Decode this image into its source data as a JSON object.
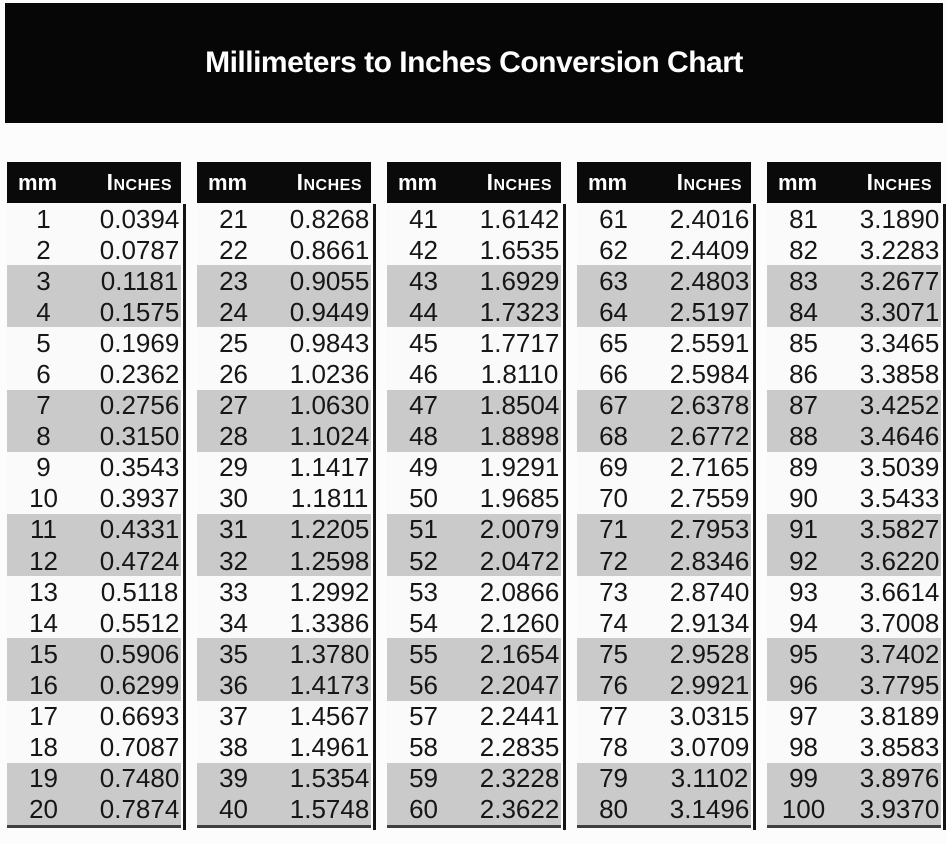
{
  "title": "Millimeters to Inches Conversion Chart",
  "colors": {
    "page_bg": "#fcfcfc",
    "banner_bg": "#060606",
    "title_text": "#ffffff",
    "header_bg": "#0a0a0a",
    "header_text": "#ffffff",
    "row_bg": "#fafafa",
    "row_alt_bg": "#cacaca",
    "separator": "#141414",
    "table_edge": "#3f3f3f",
    "body_text": "#161616"
  },
  "chart_data": {
    "type": "table",
    "title": "Millimeters to Inches Conversion Chart",
    "column_headers": [
      "mm",
      "Inches"
    ],
    "row_striping": "pairs of rows alternate white and gray",
    "tables": [
      {
        "rows": [
          [
            "1",
            "0.0394"
          ],
          [
            "2",
            "0.0787"
          ],
          [
            "3",
            "0.1181"
          ],
          [
            "4",
            "0.1575"
          ],
          [
            "5",
            "0.1969"
          ],
          [
            "6",
            "0.2362"
          ],
          [
            "7",
            "0.2756"
          ],
          [
            "8",
            "0.3150"
          ],
          [
            "9",
            "0.3543"
          ],
          [
            "10",
            "0.3937"
          ],
          [
            "11",
            "0.4331"
          ],
          [
            "12",
            "0.4724"
          ],
          [
            "13",
            "0.5118"
          ],
          [
            "14",
            "0.5512"
          ],
          [
            "15",
            "0.5906"
          ],
          [
            "16",
            "0.6299"
          ],
          [
            "17",
            "0.6693"
          ],
          [
            "18",
            "0.7087"
          ],
          [
            "19",
            "0.7480"
          ],
          [
            "20",
            "0.7874"
          ]
        ]
      },
      {
        "rows": [
          [
            "21",
            "0.8268"
          ],
          [
            "22",
            "0.8661"
          ],
          [
            "23",
            "0.9055"
          ],
          [
            "24",
            "0.9449"
          ],
          [
            "25",
            "0.9843"
          ],
          [
            "26",
            "1.0236"
          ],
          [
            "27",
            "1.0630"
          ],
          [
            "28",
            "1.1024"
          ],
          [
            "29",
            "1.1417"
          ],
          [
            "30",
            "1.1811"
          ],
          [
            "31",
            "1.2205"
          ],
          [
            "32",
            "1.2598"
          ],
          [
            "33",
            "1.2992"
          ],
          [
            "34",
            "1.3386"
          ],
          [
            "35",
            "1.3780"
          ],
          [
            "36",
            "1.4173"
          ],
          [
            "37",
            "1.4567"
          ],
          [
            "38",
            "1.4961"
          ],
          [
            "39",
            "1.5354"
          ],
          [
            "40",
            "1.5748"
          ]
        ]
      },
      {
        "rows": [
          [
            "41",
            "1.6142"
          ],
          [
            "42",
            "1.6535"
          ],
          [
            "43",
            "1.6929"
          ],
          [
            "44",
            "1.7323"
          ],
          [
            "45",
            "1.7717"
          ],
          [
            "46",
            "1.8110"
          ],
          [
            "47",
            "1.8504"
          ],
          [
            "48",
            "1.8898"
          ],
          [
            "49",
            "1.9291"
          ],
          [
            "50",
            "1.9685"
          ],
          [
            "51",
            "2.0079"
          ],
          [
            "52",
            "2.0472"
          ],
          [
            "53",
            "2.0866"
          ],
          [
            "54",
            "2.1260"
          ],
          [
            "55",
            "2.1654"
          ],
          [
            "56",
            "2.2047"
          ],
          [
            "57",
            "2.2441"
          ],
          [
            "58",
            "2.2835"
          ],
          [
            "59",
            "2.3228"
          ],
          [
            "60",
            "2.3622"
          ]
        ]
      },
      {
        "rows": [
          [
            "61",
            "2.4016"
          ],
          [
            "62",
            "2.4409"
          ],
          [
            "63",
            "2.4803"
          ],
          [
            "64",
            "2.5197"
          ],
          [
            "65",
            "2.5591"
          ],
          [
            "66",
            "2.5984"
          ],
          [
            "67",
            "2.6378"
          ],
          [
            "68",
            "2.6772"
          ],
          [
            "69",
            "2.7165"
          ],
          [
            "70",
            "2.7559"
          ],
          [
            "71",
            "2.7953"
          ],
          [
            "72",
            "2.8346"
          ],
          [
            "73",
            "2.8740"
          ],
          [
            "74",
            "2.9134"
          ],
          [
            "75",
            "2.9528"
          ],
          [
            "76",
            "2.9921"
          ],
          [
            "77",
            "3.0315"
          ],
          [
            "78",
            "3.0709"
          ],
          [
            "79",
            "3.1102"
          ],
          [
            "80",
            "3.1496"
          ]
        ]
      },
      {
        "rows": [
          [
            "81",
            "3.1890"
          ],
          [
            "82",
            "3.2283"
          ],
          [
            "83",
            "3.2677"
          ],
          [
            "84",
            "3.3071"
          ],
          [
            "85",
            "3.3465"
          ],
          [
            "86",
            "3.3858"
          ],
          [
            "87",
            "3.4252"
          ],
          [
            "88",
            "3.4646"
          ],
          [
            "89",
            "3.5039"
          ],
          [
            "90",
            "3.5433"
          ],
          [
            "91",
            "3.5827"
          ],
          [
            "92",
            "3.6220"
          ],
          [
            "93",
            "3.6614"
          ],
          [
            "94",
            "3.7008"
          ],
          [
            "95",
            "3.7402"
          ],
          [
            "96",
            "3.7795"
          ],
          [
            "97",
            "3.8189"
          ],
          [
            "98",
            "3.8583"
          ],
          [
            "99",
            "3.8976"
          ],
          [
            "100",
            "3.9370"
          ]
        ]
      }
    ]
  }
}
